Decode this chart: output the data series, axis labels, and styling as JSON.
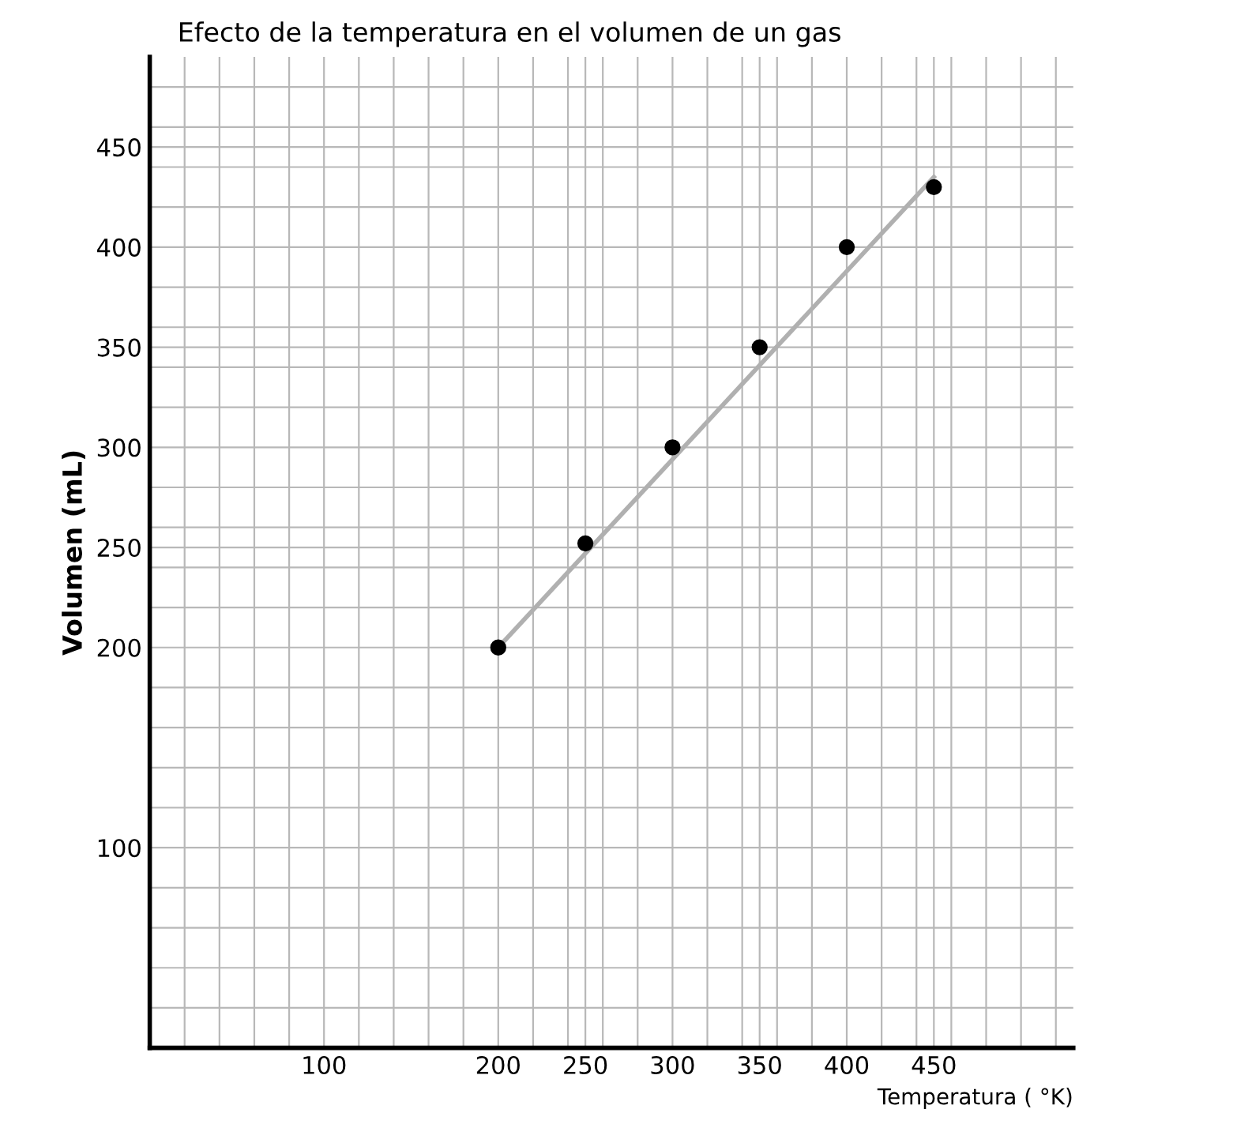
{
  "chart_data": {
    "type": "scatter",
    "title": "Efecto de la temperatura en el volumen de un gas",
    "xlabel": "Temperatura ( °K)",
    "ylabel": "Volumen (mL)",
    "x": [
      200,
      250,
      300,
      350,
      400,
      450
    ],
    "series": [
      {
        "color": "#000000",
        "marker": "circle",
        "values": [
          200,
          252,
          300,
          350,
          400,
          430
        ]
      },
      {
        "type": "line",
        "color": "#b0b0b0",
        "marker": "none",
        "x": [
          200,
          450
        ],
        "values": [
          200,
          435
        ]
      }
    ],
    "grid": true,
    "xlim": [
      0,
      530
    ],
    "ylim": [
      0,
      495
    ],
    "xticks": [
      {
        "value": 20,
        "label": null
      },
      {
        "value": 40,
        "label": null
      },
      {
        "value": 60,
        "label": null
      },
      {
        "value": 80,
        "label": null
      },
      100,
      {
        "value": 120,
        "label": null
      },
      {
        "value": 140,
        "label": null
      },
      {
        "value": 160,
        "label": null
      },
      {
        "value": 180,
        "label": null
      },
      200,
      {
        "value": 220,
        "label": null
      },
      {
        "value": 240,
        "label": null
      },
      250,
      {
        "value": 260,
        "label": null
      },
      {
        "value": 280,
        "label": null
      },
      300,
      {
        "value": 320,
        "label": null
      },
      {
        "value": 340,
        "label": null
      },
      350,
      {
        "value": 360,
        "label": null
      },
      {
        "value": 380,
        "label": null
      },
      400,
      {
        "value": 420,
        "label": null
      },
      {
        "value": 440,
        "label": null
      },
      450,
      {
        "value": 460,
        "label": null
      },
      {
        "value": 480,
        "label": null
      },
      {
        "value": 500,
        "label": null
      },
      {
        "value": 520,
        "label": null
      }
    ],
    "yticks": [
      {
        "value": 20,
        "label": null
      },
      {
        "value": 40,
        "label": null
      },
      {
        "value": 60,
        "label": null
      },
      {
        "value": 80,
        "label": null
      },
      100,
      {
        "value": 120,
        "label": null
      },
      {
        "value": 140,
        "label": null
      },
      {
        "value": 160,
        "label": null
      },
      {
        "value": 180,
        "label": null
      },
      200,
      {
        "value": 220,
        "label": null
      },
      {
        "value": 240,
        "label": null
      },
      250,
      {
        "value": 260,
        "label": null
      },
      {
        "value": 280,
        "label": null
      },
      300,
      {
        "value": 320,
        "label": null
      },
      {
        "value": 340,
        "label": null
      },
      350,
      {
        "value": 360,
        "label": null
      },
      {
        "value": 380,
        "label": null
      },
      400,
      {
        "value": 420,
        "label": null
      },
      {
        "value": 440,
        "label": null
      },
      450,
      {
        "value": 460,
        "label": null
      },
      {
        "value": 480,
        "label": null
      }
    ]
  }
}
